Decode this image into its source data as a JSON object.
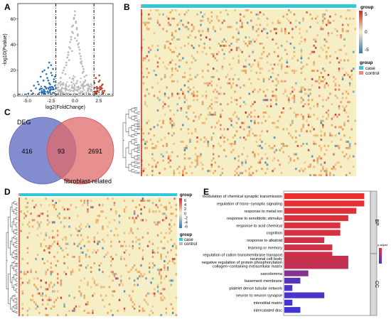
{
  "panels": {
    "A": {
      "label": "A",
      "xlabel": "log2(FoldChange)",
      "ylabel": "-log10(Pvalue)",
      "xticks": [
        "-5.0",
        "-2.5",
        "0.0",
        "2.5"
      ],
      "yticks": [
        "0",
        "20",
        "40",
        "60"
      ]
    },
    "B": {
      "label": "B",
      "legend_scale_title": "group",
      "legend_scale_ticks": [
        "5",
        "0",
        "-5"
      ],
      "legend_group_title": "group",
      "legend_groups": [
        "case",
        "control"
      ]
    },
    "C": {
      "label": "C",
      "set1_label": "DEG",
      "set2_label": "fibroblast-related",
      "left_only": "416",
      "overlap": "93",
      "right_only": "2691"
    },
    "D": {
      "label": "D",
      "legend_scale_title": "group",
      "legend_scale_ticks": [
        "6",
        "4",
        "2",
        "0",
        "-2",
        "-4",
        "-6"
      ],
      "legend_group_title": "group",
      "legend_groups": [
        "case",
        "control"
      ]
    },
    "E": {
      "label": "E",
      "legend_title": "p.adjust",
      "facets": [
        "BP",
        "CC"
      ]
    }
  },
  "colors": {
    "up": "#b5412a",
    "down": "#2b72b0",
    "ns": "#b7b7b7",
    "case": "#33c8d6",
    "control": "#f08a7e",
    "venn_left": "#6f79c7",
    "venn_right": "#e06a6a",
    "heat_low": "#2f79b8",
    "heat_mid": "#f6efc6",
    "heat_high": "#c8292a",
    "bar_high": "#e8302e",
    "bar_low": "#3434e0"
  },
  "chart_data": [
    {
      "type": "scatter",
      "panel": "A",
      "title": "",
      "xlabel": "log2(FoldChange)",
      "ylabel": "-log10(Pvalue)",
      "xlim": [
        -6,
        4
      ],
      "ylim": [
        0,
        72
      ],
      "thresholds": {
        "x": [
          -2,
          2
        ],
        "y": 1.3
      },
      "series": [
        {
          "name": "",
          "group": "down",
          "note_sampled": true,
          "x": [
            -4.6,
            -4.1,
            -3.8,
            -3.5,
            -3.3,
            -3.1,
            -2.9,
            -2.7,
            -2.5,
            -2.3,
            -2.2,
            -2.1,
            -4.4,
            -3.9,
            -3.6,
            -3.2,
            -3.0,
            -2.8,
            -2.6,
            -2.4,
            -3.7,
            -3.4,
            -2.9,
            -2.5,
            -2.2,
            -4.9,
            -4.3,
            -3.0,
            -2.6,
            -2.3,
            -3.5,
            -2.8,
            -2.4,
            -2.1,
            -3.2,
            -2.7
          ],
          "y": [
            4,
            6,
            9,
            3,
            12,
            7,
            14,
            10,
            18,
            5,
            13,
            8,
            2,
            11,
            15,
            20,
            6,
            22,
            9,
            16,
            5,
            19,
            3,
            24,
            11,
            1.8,
            8,
            17,
            4,
            21,
            2.5,
            12,
            7,
            15,
            3,
            26
          ]
        },
        {
          "name": "",
          "group": "ns",
          "note_sampled": true,
          "x": [
            -1.9,
            -1.7,
            -1.5,
            -1.3,
            -1.1,
            -0.9,
            -0.8,
            -0.7,
            -0.6,
            -0.5,
            -0.4,
            -0.3,
            -0.2,
            -0.1,
            0.0,
            0.1,
            0.2,
            0.3,
            0.4,
            0.5,
            0.6,
            0.7,
            0.8,
            0.9,
            1.0,
            1.1,
            1.3,
            1.5,
            1.7,
            1.9,
            -1.2,
            -0.6,
            -0.3,
            0.0,
            0.3,
            0.6,
            1.2,
            -0.9,
            -0.4,
            0.2,
            0.5,
            0.9,
            -1.5,
            -0.2,
            0.1,
            0.4,
            -0.7,
            0.7,
            -0.1,
            0.3,
            -0.5,
            1.4,
            -1.0,
            0.0,
            0.2,
            -0.3,
            0.6,
            -0.8,
            0.8,
            -1.6
          ],
          "y": [
            6,
            10,
            14,
            18,
            22,
            26,
            30,
            34,
            38,
            42,
            46,
            50,
            55,
            60,
            63,
            58,
            52,
            47,
            41,
            36,
            31,
            27,
            23,
            19,
            15,
            12,
            9,
            7,
            5,
            3,
            20,
            28,
            35,
            45,
            40,
            29,
            16,
            24,
            44,
            53,
            33,
            21,
            11,
            49,
            57,
            38,
            32,
            25,
            61,
            48,
            37,
            8,
            17,
            66,
            43,
            54,
            26,
            30,
            18,
            4
          ]
        },
        {
          "name": "",
          "group": "up",
          "note_sampled": true,
          "x": [
            2.1,
            2.3,
            2.5,
            2.7,
            2.9,
            3.1,
            2.2,
            2.4,
            2.6,
            2.8,
            3.0,
            2.05,
            2.35,
            2.55
          ],
          "y": [
            3,
            7,
            11,
            5,
            9,
            4,
            14,
            6,
            12,
            8,
            2.5,
            10,
            4,
            16
          ]
        }
      ]
    },
    {
      "type": "heatmap",
      "panel": "B",
      "title": "",
      "groups": {
        "case": "most samples",
        "control": "few samples (top-left)"
      },
      "value_range": [
        -5,
        5
      ],
      "note": "thousands of genes x samples; values rendered as a mostly pale-yellow field with scattered red/orange and blue cells"
    },
    {
      "type": "table",
      "panel": "C",
      "title": "",
      "sets": [
        {
          "name": "DEG",
          "only": 416
        },
        {
          "name": "fibroblast-related",
          "only": 2691
        }
      ],
      "intersection": 93
    },
    {
      "type": "heatmap",
      "panel": "D",
      "title": "",
      "groups": {
        "case": "most samples",
        "control": "few samples (top-left)"
      },
      "value_range": [
        -6,
        6
      ],
      "note": "93 genes x samples; values rendered as pale-yellow field with scattered orange/red and blue cells"
    },
    {
      "type": "bar",
      "panel": "E",
      "orientation": "horizontal",
      "title": "",
      "xlabel": "",
      "ylabel": "",
      "facets": [
        {
          "name": "BP",
          "categories": [
            "modulation of chemical synaptic transmission",
            "regulation of trans−synaptic signaling",
            "response to metal ion",
            "response to xenobiotic stimulus",
            "response to acid chemical",
            "cognition",
            "response to alkaloid",
            "learning or memory",
            "regulation of cation transmembrane transport",
            "negative regulation of protein phosphorylation"
          ],
          "values": [
            10,
            10,
            9,
            8,
            7,
            7,
            5,
            6,
            6,
            8
          ],
          "color_strength": [
            1.0,
            0.98,
            0.95,
            0.93,
            0.92,
            0.9,
            0.86,
            0.86,
            0.85,
            0.8
          ]
        },
        {
          "name": "CC",
          "categories": [
            "neuronal cell body",
            "collagen−containing extracellular matrix",
            "sarcolemma",
            "basement membrane",
            "platelet dense tubular network",
            "neuron to neuron synapse",
            "interstitial matrix",
            "intercalated disc"
          ],
          "values": [
            8,
            8,
            3,
            2,
            1,
            5,
            1,
            2
          ],
          "color_strength": [
            0.82,
            0.78,
            0.45,
            0.2,
            0.15,
            0.12,
            0.1,
            0.08
          ]
        }
      ]
    }
  ]
}
